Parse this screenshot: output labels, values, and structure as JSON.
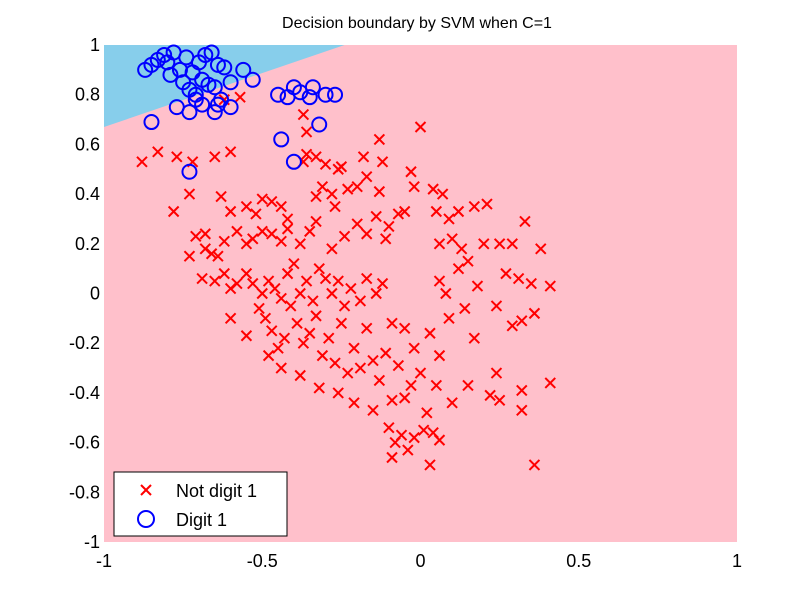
{
  "chart_data": {
    "type": "scatter",
    "title": "Decision boundary by SVM when C=1",
    "xlabel": "",
    "ylabel": "",
    "xlim": [
      -1,
      1
    ],
    "ylim": [
      -1,
      1
    ],
    "x_ticks": [
      -1,
      -0.5,
      0,
      0.5,
      1
    ],
    "x_tick_labels": [
      "-1",
      "-0.5",
      "0",
      "0.5",
      "1"
    ],
    "y_ticks": [
      -1,
      -0.8,
      -0.6,
      -0.4,
      -0.2,
      0,
      0.2,
      0.4,
      0.6,
      0.8,
      1
    ],
    "y_tick_labels": [
      "-1",
      "-0.8",
      "-0.6",
      "-0.4",
      "-0.2",
      "0",
      "0.2",
      "0.4",
      "0.6",
      "0.8",
      "1"
    ],
    "grid": false,
    "legend_position": "bottom-left",
    "regions": [
      {
        "name": "Digit 1 region",
        "color": "#87ceeb",
        "boundary": {
          "x_at_top": -0.24,
          "y_at_left": 0.67
        }
      },
      {
        "name": "Not digit 1 region",
        "color": "#ffc0cb"
      }
    ],
    "series": [
      {
        "name": "Not digit 1",
        "marker": "x",
        "color": "#ff0000",
        "points": [
          [
            -0.88,
            0.53
          ],
          [
            -0.83,
            0.57
          ],
          [
            -0.77,
            0.55
          ],
          [
            -0.72,
            0.53
          ],
          [
            -0.65,
            0.55
          ],
          [
            -0.6,
            0.57
          ],
          [
            -0.62,
            0.78
          ],
          [
            -0.57,
            0.79
          ],
          [
            -0.36,
            0.65
          ],
          [
            -0.36,
            0.56
          ],
          [
            -0.37,
            0.53
          ],
          [
            -0.33,
            0.55
          ],
          [
            -0.3,
            0.52
          ],
          [
            -0.26,
            0.5
          ],
          [
            -0.25,
            0.51
          ],
          [
            -0.37,
            0.72
          ],
          [
            -0.18,
            0.55
          ],
          [
            -0.13,
            0.62
          ],
          [
            -0.12,
            0.53
          ],
          [
            -0.03,
            0.49
          ],
          [
            0.0,
            0.67
          ],
          [
            -0.73,
            0.4
          ],
          [
            -0.78,
            0.33
          ],
          [
            -0.68,
            0.24
          ],
          [
            -0.63,
            0.39
          ],
          [
            -0.6,
            0.33
          ],
          [
            -0.55,
            0.35
          ],
          [
            -0.52,
            0.32
          ],
          [
            -0.5,
            0.38
          ],
          [
            -0.47,
            0.37
          ],
          [
            -0.44,
            0.35
          ],
          [
            -0.42,
            0.3
          ],
          [
            -0.33,
            0.39
          ],
          [
            -0.31,
            0.43
          ],
          [
            -0.28,
            0.4
          ],
          [
            -0.27,
            0.35
          ],
          [
            -0.23,
            0.42
          ],
          [
            -0.2,
            0.43
          ],
          [
            -0.17,
            0.47
          ],
          [
            -0.13,
            0.41
          ],
          [
            -0.07,
            0.32
          ],
          [
            -0.1,
            0.27
          ],
          [
            -0.05,
            0.33
          ],
          [
            -0.02,
            0.43
          ],
          [
            0.04,
            0.42
          ],
          [
            0.05,
            0.33
          ],
          [
            0.07,
            0.4
          ],
          [
            0.09,
            0.3
          ],
          [
            0.12,
            0.33
          ],
          [
            0.17,
            0.35
          ],
          [
            0.21,
            0.36
          ],
          [
            -0.73,
            0.15
          ],
          [
            -0.71,
            0.23
          ],
          [
            -0.68,
            0.18
          ],
          [
            -0.66,
            0.16
          ],
          [
            -0.64,
            0.15
          ],
          [
            -0.62,
            0.21
          ],
          [
            -0.58,
            0.25
          ],
          [
            -0.55,
            0.2
          ],
          [
            -0.53,
            0.22
          ],
          [
            -0.5,
            0.25
          ],
          [
            -0.47,
            0.24
          ],
          [
            -0.44,
            0.21
          ],
          [
            -0.42,
            0.26
          ],
          [
            -0.38,
            0.2
          ],
          [
            -0.35,
            0.25
          ],
          [
            -0.33,
            0.29
          ],
          [
            -0.28,
            0.18
          ],
          [
            -0.24,
            0.23
          ],
          [
            -0.2,
            0.28
          ],
          [
            -0.17,
            0.24
          ],
          [
            -0.14,
            0.31
          ],
          [
            -0.11,
            0.22
          ],
          [
            0.06,
            0.2
          ],
          [
            0.1,
            0.22
          ],
          [
            0.13,
            0.18
          ],
          [
            0.2,
            0.2
          ],
          [
            0.25,
            0.2
          ],
          [
            0.29,
            0.2
          ],
          [
            0.33,
            0.29
          ],
          [
            0.38,
            0.18
          ],
          [
            -0.69,
            0.06
          ],
          [
            -0.65,
            0.05
          ],
          [
            -0.62,
            0.08
          ],
          [
            -0.6,
            0.02
          ],
          [
            -0.58,
            0.04
          ],
          [
            -0.55,
            0.08
          ],
          [
            -0.53,
            0.04
          ],
          [
            -0.5,
            0.0
          ],
          [
            -0.48,
            0.05
          ],
          [
            -0.46,
            0.02
          ],
          [
            -0.44,
            -0.02
          ],
          [
            -0.42,
            0.08
          ],
          [
            -0.4,
            0.12
          ],
          [
            -0.38,
            0.0
          ],
          [
            -0.36,
            0.05
          ],
          [
            -0.34,
            -0.03
          ],
          [
            -0.32,
            0.1
          ],
          [
            -0.3,
            0.06
          ],
          [
            -0.28,
            0.0
          ],
          [
            -0.26,
            0.05
          ],
          [
            -0.24,
            -0.05
          ],
          [
            -0.22,
            0.02
          ],
          [
            -0.19,
            -0.03
          ],
          [
            -0.17,
            0.06
          ],
          [
            -0.14,
            0.0
          ],
          [
            -0.12,
            0.04
          ],
          [
            0.06,
            0.05
          ],
          [
            0.08,
            0.0
          ],
          [
            0.12,
            0.1
          ],
          [
            0.15,
            0.13
          ],
          [
            0.18,
            0.03
          ],
          [
            0.27,
            0.08
          ],
          [
            0.31,
            0.06
          ],
          [
            0.35,
            0.04
          ],
          [
            0.41,
            0.03
          ],
          [
            -0.51,
            -0.06
          ],
          [
            -0.49,
            -0.1
          ],
          [
            -0.47,
            -0.15
          ],
          [
            -0.45,
            -0.22
          ],
          [
            -0.43,
            -0.18
          ],
          [
            -0.41,
            -0.05
          ],
          [
            -0.39,
            -0.12
          ],
          [
            -0.37,
            -0.2
          ],
          [
            -0.35,
            -0.16
          ],
          [
            -0.33,
            -0.09
          ],
          [
            -0.31,
            -0.25
          ],
          [
            -0.29,
            -0.18
          ],
          [
            -0.27,
            -0.28
          ],
          [
            -0.25,
            -0.12
          ],
          [
            -0.23,
            -0.32
          ],
          [
            -0.21,
            -0.22
          ],
          [
            -0.19,
            -0.3
          ],
          [
            -0.17,
            -0.14
          ],
          [
            -0.15,
            -0.27
          ],
          [
            -0.13,
            -0.35
          ],
          [
            -0.11,
            -0.24
          ],
          [
            -0.09,
            -0.12
          ],
          [
            -0.07,
            -0.29
          ],
          [
            -0.05,
            -0.14
          ],
          [
            -0.02,
            -0.22
          ],
          [
            0.0,
            -0.32
          ],
          [
            0.03,
            -0.16
          ],
          [
            0.06,
            -0.25
          ],
          [
            0.09,
            -0.1
          ],
          [
            0.14,
            -0.06
          ],
          [
            0.17,
            -0.18
          ],
          [
            0.24,
            -0.05
          ],
          [
            0.29,
            -0.13
          ],
          [
            0.32,
            -0.11
          ],
          [
            0.36,
            -0.08
          ],
          [
            -0.6,
            -0.1
          ],
          [
            -0.55,
            -0.17
          ],
          [
            -0.48,
            -0.25
          ],
          [
            -0.44,
            -0.3
          ],
          [
            -0.38,
            -0.33
          ],
          [
            -0.32,
            -0.38
          ],
          [
            -0.26,
            -0.4
          ],
          [
            -0.21,
            -0.44
          ],
          [
            -0.15,
            -0.47
          ],
          [
            -0.09,
            -0.43
          ],
          [
            -0.05,
            -0.42
          ],
          [
            -0.03,
            -0.37
          ],
          [
            0.02,
            -0.48
          ],
          [
            0.05,
            -0.37
          ],
          [
            0.1,
            -0.44
          ],
          [
            0.15,
            -0.37
          ],
          [
            0.22,
            -0.41
          ],
          [
            0.25,
            -0.43
          ],
          [
            0.32,
            -0.39
          ],
          [
            0.32,
            -0.47
          ],
          [
            -0.1,
            -0.54
          ],
          [
            -0.08,
            -0.6
          ],
          [
            -0.06,
            -0.57
          ],
          [
            -0.04,
            -0.63
          ],
          [
            -0.02,
            -0.58
          ],
          [
            0.01,
            -0.55
          ],
          [
            0.04,
            -0.56
          ],
          [
            0.06,
            -0.59
          ],
          [
            0.03,
            -0.69
          ],
          [
            -0.09,
            -0.66
          ],
          [
            0.36,
            -0.69
          ],
          [
            0.24,
            -0.32
          ],
          [
            0.41,
            -0.36
          ]
        ]
      },
      {
        "name": "Digit 1",
        "marker": "o",
        "color": "#0000ff",
        "points": [
          [
            -0.85,
            0.92
          ],
          [
            -0.83,
            0.94
          ],
          [
            -0.81,
            0.96
          ],
          [
            -0.8,
            0.93
          ],
          [
            -0.78,
            0.97
          ],
          [
            -0.76,
            0.9
          ],
          [
            -0.74,
            0.95
          ],
          [
            -0.72,
            0.89
          ],
          [
            -0.7,
            0.93
          ],
          [
            -0.68,
            0.96
          ],
          [
            -0.66,
            0.97
          ],
          [
            -0.64,
            0.92
          ],
          [
            -0.62,
            0.91
          ],
          [
            -0.87,
            0.9
          ],
          [
            -0.79,
            0.88
          ],
          [
            -0.75,
            0.85
          ],
          [
            -0.73,
            0.82
          ],
          [
            -0.71,
            0.8
          ],
          [
            -0.69,
            0.86
          ],
          [
            -0.67,
            0.84
          ],
          [
            -0.65,
            0.83
          ],
          [
            -0.6,
            0.85
          ],
          [
            -0.56,
            0.9
          ],
          [
            -0.53,
            0.86
          ],
          [
            -0.77,
            0.75
          ],
          [
            -0.73,
            0.73
          ],
          [
            -0.71,
            0.78
          ],
          [
            -0.69,
            0.76
          ],
          [
            -0.64,
            0.76
          ],
          [
            -0.65,
            0.73
          ],
          [
            -0.63,
            0.78
          ],
          [
            -0.6,
            0.75
          ],
          [
            -0.45,
            0.8
          ],
          [
            -0.42,
            0.79
          ],
          [
            -0.4,
            0.83
          ],
          [
            -0.38,
            0.81
          ],
          [
            -0.3,
            0.8
          ],
          [
            -0.27,
            0.8
          ],
          [
            -0.32,
            0.68
          ],
          [
            -0.85,
            0.69
          ],
          [
            -0.73,
            0.49
          ],
          [
            -0.44,
            0.62
          ],
          [
            -0.4,
            0.53
          ],
          [
            -0.35,
            0.79
          ],
          [
            -0.34,
            0.83
          ]
        ]
      }
    ]
  }
}
